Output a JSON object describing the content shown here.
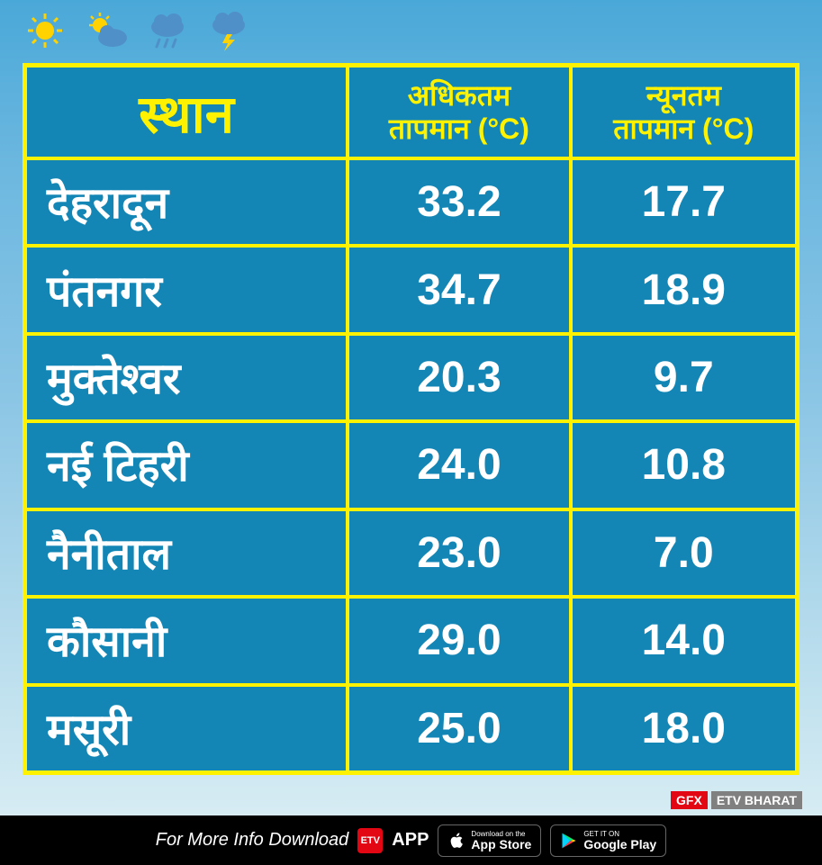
{
  "table": {
    "border_color": "#fff200",
    "header_bg": "#1386b5",
    "data_bg": "#1386b5",
    "header_text_color": "#fff200",
    "place_text_color": "#ffffff",
    "value_text_color": "#ffffff",
    "columns": {
      "place": "स्थान",
      "max_line1": "अधिकतम",
      "max_line2": "तापमान (°C)",
      "min_line1": "न्यूनतम",
      "min_line2": "तापमान (°C)"
    },
    "rows": [
      {
        "place": "देहरादून",
        "max": "33.2",
        "min": "17.7"
      },
      {
        "place": "पंतनगर",
        "max": "34.7",
        "min": "18.9"
      },
      {
        "place": "मुक्तेश्वर",
        "max": "20.3",
        "min": "9.7"
      },
      {
        "place": "नई टिहरी",
        "max": "24.0",
        "min": "10.8"
      },
      {
        "place": "नैनीताल",
        "max": "23.0",
        "min": "7.0"
      },
      {
        "place": "कौसानी",
        "max": "29.0",
        "min": "14.0"
      },
      {
        "place": "मसूरी",
        "max": "25.0",
        "min": "18.0"
      }
    ]
  },
  "badge": {
    "gfx": "GFX",
    "brand": "ETV BHARAT"
  },
  "footer": {
    "text": "For More Info Download",
    "app": "APP",
    "appstore_small": "Download on the",
    "appstore_big": "App Store",
    "play_small": "GET IT ON",
    "play_big": "Google Play"
  },
  "colors": {
    "yellow": "#fff200",
    "teal": "#1386b5",
    "red": "#e30613",
    "grey": "#808080"
  }
}
